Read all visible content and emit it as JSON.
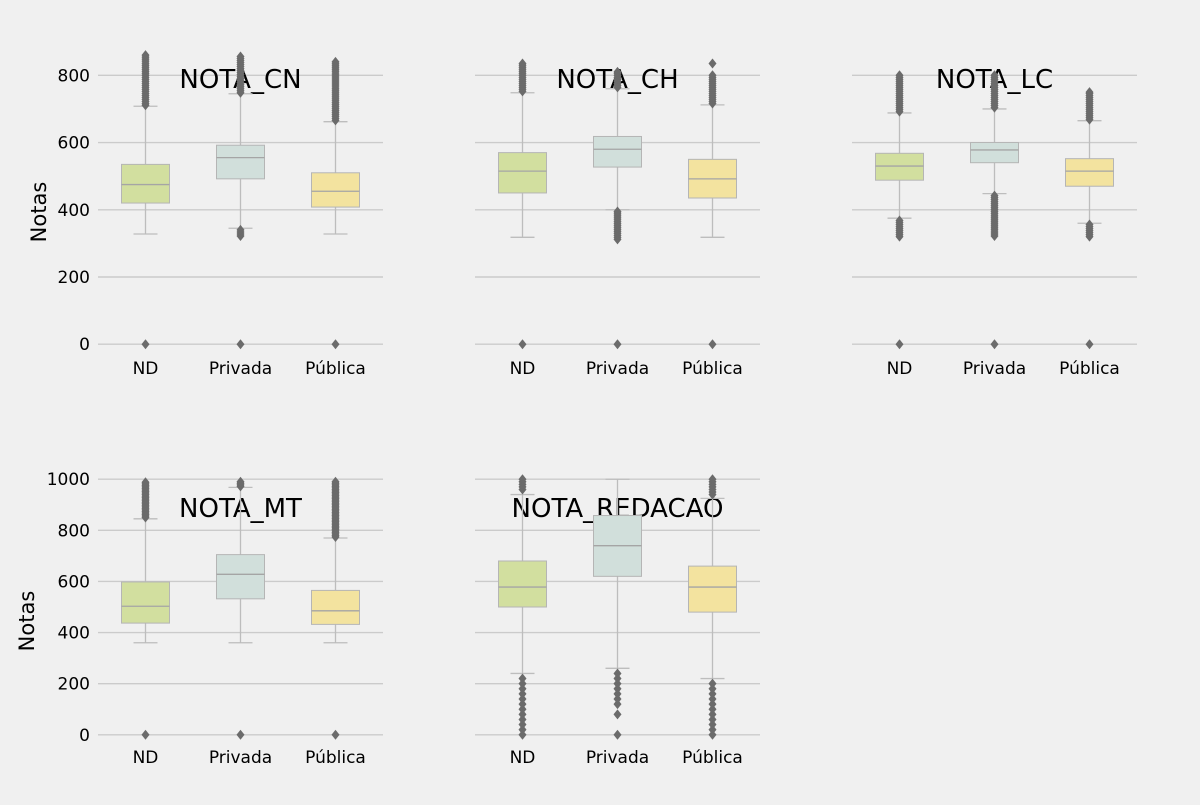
{
  "chart_data": [
    {
      "type": "box",
      "title": "NOTA_CN",
      "ylabel": "Notas",
      "categories": [
        "ND",
        "Privada",
        "Pública"
      ],
      "ylim": [
        -35,
        905
      ],
      "yticks": [
        0,
        200,
        400,
        600,
        800
      ],
      "grid": true,
      "colors": [
        "#d2df9f",
        "#d1dfdb",
        "#f3e39f"
      ],
      "boxes": [
        {
          "category": "ND",
          "whislo": 328,
          "q1": 420,
          "med": 475,
          "q3": 535,
          "whishi": 708,
          "fliers_high": [
            711,
            716,
            722,
            728,
            734,
            740,
            746,
            752,
            758,
            764,
            770,
            776,
            782,
            788,
            794,
            800,
            806,
            812,
            818,
            824,
            830,
            836,
            842,
            848,
            854,
            860
          ],
          "fliers_low": [
            0
          ]
        },
        {
          "category": "Privada",
          "whislo": 345,
          "q1": 492,
          "med": 555,
          "q3": 592,
          "whishi": 745,
          "fliers_high": [
            748,
            754,
            760,
            766,
            772,
            778,
            784,
            790,
            796,
            802,
            808,
            814,
            820,
            826,
            832,
            838,
            844,
            850,
            856
          ],
          "fliers_low": [
            0,
            322,
            328,
            334,
            340
          ]
        },
        {
          "category": "Pública",
          "whislo": 328,
          "q1": 408,
          "med": 455,
          "q3": 510,
          "whishi": 662,
          "fliers_high": [
            666,
            672,
            678,
            684,
            690,
            696,
            702,
            708,
            714,
            720,
            726,
            732,
            738,
            744,
            750,
            756,
            762,
            768,
            774,
            780,
            786,
            792,
            798,
            804,
            810,
            816,
            822,
            828,
            834,
            840
          ],
          "fliers_low": [
            0
          ]
        }
      ]
    },
    {
      "type": "box",
      "title": "NOTA_CH",
      "ylabel": "",
      "categories": [
        "ND",
        "Privada",
        "Pública"
      ],
      "ylim": [
        -35,
        905
      ],
      "yticks": [
        0,
        200,
        400,
        600,
        800
      ],
      "show_yticks": false,
      "grid": true,
      "colors": [
        "#d2df9f",
        "#d1dfdb",
        "#f3e39f"
      ],
      "boxes": [
        {
          "category": "ND",
          "whislo": 318,
          "q1": 450,
          "med": 515,
          "q3": 570,
          "whishi": 748,
          "fliers_high": [
            752,
            758,
            764,
            770,
            776,
            782,
            788,
            794,
            800,
            806,
            812,
            818,
            824,
            830,
            835
          ],
          "fliers_low": [
            0
          ]
        },
        {
          "category": "Privada",
          "whislo": 400,
          "q1": 527,
          "med": 580,
          "q3": 618,
          "whishi": 760,
          "fliers_high": [
            764,
            770,
            776,
            782,
            788,
            794,
            800,
            806,
            810
          ],
          "fliers_low": [
            0,
            312,
            318,
            324,
            330,
            336,
            342,
            348,
            354,
            360,
            366,
            372,
            378,
            384,
            390,
            395
          ]
        },
        {
          "category": "Pública",
          "whislo": 318,
          "q1": 435,
          "med": 492,
          "q3": 550,
          "whishi": 712,
          "fliers_high": [
            716,
            722,
            728,
            734,
            740,
            746,
            752,
            758,
            764,
            770,
            776,
            782,
            788,
            794,
            800,
            835
          ],
          "fliers_low": [
            0
          ]
        }
      ]
    },
    {
      "type": "box",
      "title": "NOTA_LC",
      "ylabel": "",
      "categories": [
        "ND",
        "Privada",
        "Pública"
      ],
      "ylim": [
        -35,
        905
      ],
      "yticks": [
        0,
        200,
        400,
        600,
        800
      ],
      "show_yticks": false,
      "grid": true,
      "colors": [
        "#d2df9f",
        "#d1dfdb",
        "#f3e39f"
      ],
      "boxes": [
        {
          "category": "ND",
          "whislo": 375,
          "q1": 488,
          "med": 530,
          "q3": 568,
          "whishi": 688,
          "fliers_high": [
            692,
            698,
            704,
            710,
            716,
            722,
            728,
            734,
            740,
            746,
            752,
            758,
            764,
            770,
            776,
            782,
            788,
            794,
            800
          ],
          "fliers_low": [
            0,
            320,
            326,
            332,
            338,
            344,
            350,
            356,
            362,
            368
          ]
        },
        {
          "category": "Privada",
          "whislo": 448,
          "q1": 540,
          "med": 578,
          "q3": 600,
          "whishi": 700,
          "fliers_high": [
            704,
            710,
            716,
            722,
            728,
            734,
            740,
            746,
            752,
            758,
            764,
            770,
            776,
            782,
            788,
            794,
            800
          ],
          "fliers_low": [
            0,
            322,
            328,
            334,
            340,
            346,
            352,
            358,
            364,
            370,
            376,
            382,
            388,
            394,
            400,
            406,
            412,
            418,
            424,
            430,
            436,
            442
          ]
        },
        {
          "category": "Pública",
          "whislo": 360,
          "q1": 470,
          "med": 515,
          "q3": 552,
          "whishi": 665,
          "fliers_high": [
            668,
            674,
            680,
            686,
            692,
            698,
            704,
            710,
            716,
            722,
            728,
            734,
            740,
            746,
            750
          ],
          "fliers_low": [
            0,
            320,
            326,
            332,
            338,
            344,
            350,
            356
          ]
        }
      ]
    },
    {
      "type": "box",
      "title": "NOTA_MT",
      "ylabel": "Notas",
      "categories": [
        "ND",
        "Privada",
        "Pública"
      ],
      "ylim": [
        -40,
        1040
      ],
      "yticks": [
        0,
        200,
        400,
        600,
        800,
        1000
      ],
      "grid": true,
      "colors": [
        "#d2df9f",
        "#d1dfdb",
        "#f3e39f"
      ],
      "boxes": [
        {
          "category": "ND",
          "whislo": 360,
          "q1": 437,
          "med": 503,
          "q3": 598,
          "whishi": 845,
          "fliers_high": [
            850,
            856,
            862,
            868,
            874,
            880,
            886,
            892,
            898,
            904,
            910,
            916,
            922,
            928,
            934,
            940,
            946,
            952,
            958,
            964,
            970,
            976,
            982,
            988
          ],
          "fliers_low": [
            0
          ]
        },
        {
          "category": "Privada",
          "whislo": 360,
          "q1": 532,
          "med": 628,
          "q3": 705,
          "whishi": 968,
          "fliers_high": [
            972,
            978,
            984,
            990
          ],
          "fliers_low": [
            0
          ]
        },
        {
          "category": "Pública",
          "whislo": 360,
          "q1": 432,
          "med": 485,
          "q3": 565,
          "whishi": 770,
          "fliers_high": [
            774,
            780,
            786,
            792,
            798,
            804,
            810,
            816,
            822,
            828,
            834,
            840,
            846,
            852,
            858,
            864,
            870,
            876,
            882,
            888,
            894,
            900,
            906,
            912,
            918,
            924,
            930,
            936,
            942,
            948,
            954,
            960,
            966,
            972,
            978,
            984,
            990
          ],
          "fliers_low": [
            0
          ]
        }
      ]
    },
    {
      "type": "box",
      "title": "NOTA_REDACAO",
      "ylabel": "",
      "categories": [
        "ND",
        "Privada",
        "Pública"
      ],
      "ylim": [
        -40,
        1040
      ],
      "yticks": [
        0,
        200,
        400,
        600,
        800,
        1000
      ],
      "show_yticks": false,
      "grid": true,
      "colors": [
        "#d2df9f",
        "#d1dfdb",
        "#f3e39f"
      ],
      "boxes": [
        {
          "category": "ND",
          "whislo": 240,
          "q1": 500,
          "med": 578,
          "q3": 680,
          "whishi": 940,
          "fliers_high": [
            960,
            970,
            980,
            990,
            1000
          ],
          "fliers_low": [
            0,
            20,
            40,
            60,
            80,
            100,
            120,
            140,
            160,
            180,
            200,
            220
          ]
        },
        {
          "category": "Privada",
          "whislo": 260,
          "q1": 620,
          "med": 740,
          "q3": 858,
          "whishi": 1000,
          "fliers_high": [],
          "fliers_low": [
            0,
            80,
            120,
            140,
            160,
            180,
            200,
            220,
            240
          ]
        },
        {
          "category": "Pública",
          "whislo": 220,
          "q1": 480,
          "med": 578,
          "q3": 660,
          "whishi": 925,
          "fliers_high": [
            940,
            950,
            960,
            970,
            980,
            990,
            1000
          ],
          "fliers_low": [
            0,
            20,
            40,
            60,
            80,
            100,
            120,
            140,
            160,
            180,
            200
          ]
        }
      ]
    }
  ]
}
